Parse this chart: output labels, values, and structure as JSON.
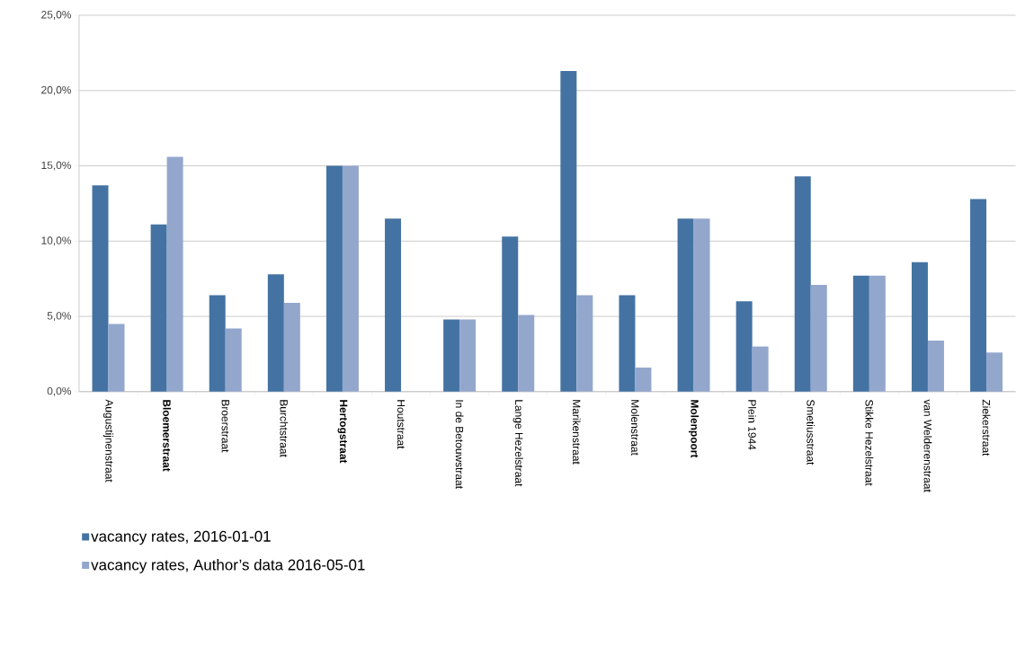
{
  "chart_data": {
    "type": "bar",
    "categories": [
      "Augustijnenstraat",
      "**Bloemerstraat**",
      "Broerstraat",
      "Burchtstraat",
      "**Hertogstraat**",
      "Houtstraat",
      "In de Betouwstraat",
      "Lange Hezelstraat",
      "Marikenstraat",
      "Molenstraat",
      "**Molenpoort**",
      "Plein 1944",
      "Smetiusstraat",
      "Stikke Hezelstraat",
      "van Welderenstraat",
      "Ziekerstraat"
    ],
    "series": [
      {
        "name": "vacancy rates, 2016-01-01",
        "color": "#4473a3",
        "values": [
          13.7,
          11.1,
          6.4,
          7.8,
          15,
          11.5,
          4.8,
          10.3,
          21.3,
          6.4,
          11.5,
          6.0,
          14.3,
          7.7,
          8.6,
          12.8
        ]
      },
      {
        "name": "vacancy rates, Author’s data 2016-05-01",
        "color": "#93a7cd",
        "values": [
          4.5,
          15.6,
          4.2,
          5.9,
          15,
          0,
          4.8,
          5.1,
          6.4,
          1.6,
          11.5,
          3.0,
          7.1,
          7.7,
          3.4,
          2.6
        ]
      }
    ],
    "ylim": [
      0,
      25
    ],
    "yticks": [
      {
        "value": 0,
        "label": "0,0%"
      },
      {
        "value": 5,
        "label": "5,0%"
      },
      {
        "value": 10,
        "label": "10,0%"
      },
      {
        "value": 15,
        "label": "15,0%"
      },
      {
        "value": 20,
        "label": "20,0%"
      },
      {
        "value": 25,
        "label": "25,0%"
      }
    ],
    "grid": "y",
    "legend": "bottom left"
  }
}
